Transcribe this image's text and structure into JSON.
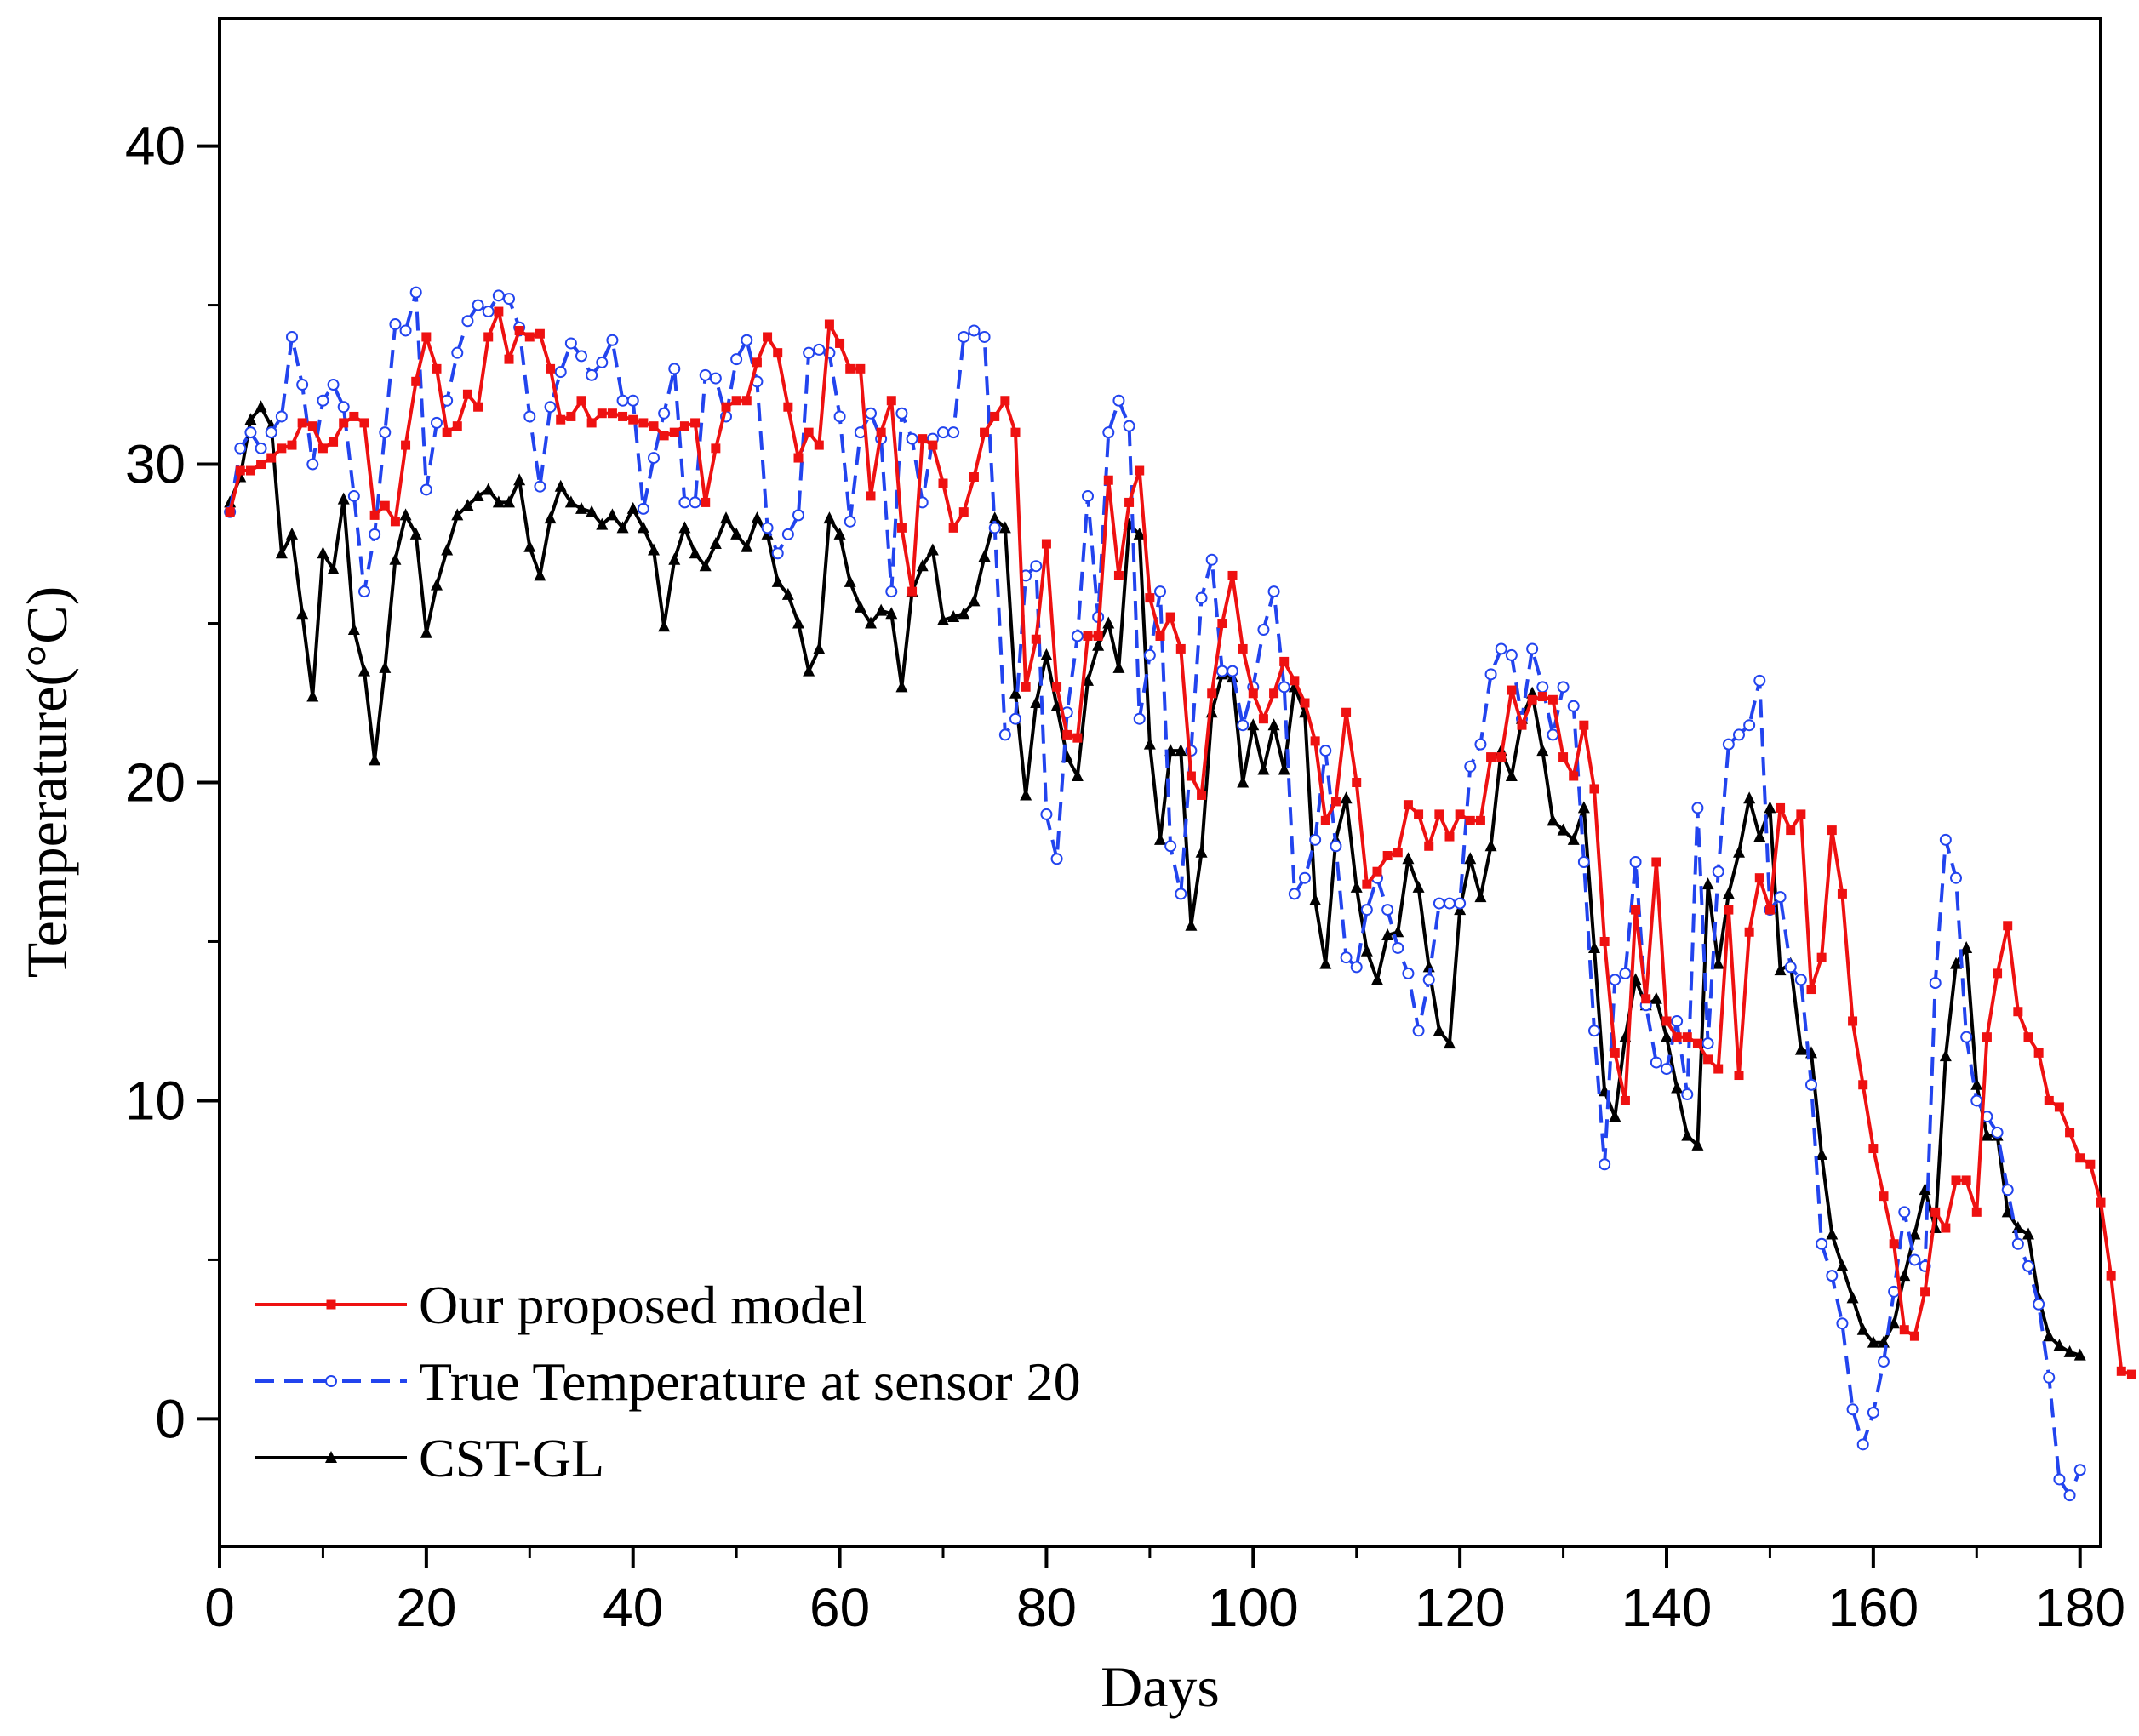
{
  "chart_data": {
    "type": "line",
    "title": "",
    "xlabel": "Days",
    "ylabel": "Temperature(°C)",
    "xlim": [
      0,
      182
    ],
    "ylim": [
      -4,
      44
    ],
    "xticks": [
      0,
      20,
      40,
      60,
      80,
      100,
      120,
      140,
      160,
      180
    ],
    "yticks": [
      0,
      10,
      20,
      30,
      40
    ],
    "legend_position": "bottom-left",
    "series": [
      {
        "name": "Our proposed model",
        "color": "#ee1111",
        "style": "solid",
        "marker": "square",
        "values": [
          28.5,
          29.8,
          29.8,
          30.0,
          30.2,
          30.5,
          30.6,
          31.3,
          31.2,
          30.5,
          30.7,
          31.3,
          31.5,
          31.3,
          28.4,
          28.7,
          28.2,
          30.6,
          32.6,
          34.0,
          33.0,
          31.0,
          31.2,
          32.2,
          31.8,
          34.0,
          34.8,
          33.3,
          34.2,
          34.0,
          34.1,
          33.0,
          31.4,
          31.5,
          32.0,
          31.3,
          31.6,
          31.6,
          31.5,
          31.4,
          31.3,
          31.2,
          30.9,
          31.0,
          31.2,
          31.3,
          28.8,
          30.5,
          31.8,
          32.0,
          32.0,
          33.2,
          34.0,
          33.5,
          31.8,
          30.2,
          31.0,
          30.6,
          34.4,
          33.8,
          33.0,
          33.0,
          29.0,
          31.0,
          32.0,
          28.0,
          26.0,
          30.8,
          30.6,
          29.4,
          28.0,
          28.5,
          29.6,
          31.0,
          31.5,
          32.0,
          31.0,
          23.0,
          24.5,
          27.5,
          23.0,
          21.5,
          21.4,
          24.6,
          24.6,
          29.5,
          26.5,
          28.8,
          29.8,
          25.8,
          24.6,
          25.2,
          24.2,
          20.2,
          19.6,
          22.8,
          25.0,
          26.5,
          24.2,
          22.8,
          22.0,
          22.8,
          23.8,
          23.2,
          22.5,
          21.3,
          18.8,
          19.4,
          22.2,
          20.0,
          16.8,
          17.2,
          17.7,
          17.8,
          19.3,
          19.0,
          18.0,
          19.0,
          18.3,
          19.0,
          18.8,
          18.8,
          20.8,
          20.8,
          22.9,
          21.8,
          22.6,
          22.7,
          22.6,
          20.8,
          20.2,
          21.8,
          19.8,
          15.0,
          11.5,
          10.0,
          16.0,
          13.2,
          17.5,
          12.5,
          12.0,
          12.0,
          11.8,
          11.3,
          11.0,
          16.0,
          10.8,
          15.3,
          17.0,
          16.0,
          19.2,
          18.5,
          19.0,
          13.5,
          14.5,
          18.5,
          16.5,
          12.5,
          10.5,
          8.5,
          7.0,
          5.5,
          2.8,
          2.6,
          4.0,
          6.5,
          6.0,
          7.5,
          7.5,
          6.5,
          12.0,
          14.0,
          15.5,
          12.8,
          12.0,
          11.5,
          10.0,
          9.8,
          9.0,
          8.2,
          8.0,
          6.8,
          4.5,
          1.5,
          1.4
        ]
      },
      {
        "name": "True Temperature at sensor 20",
        "color": "#2244ee",
        "style": "dashed",
        "marker": "circle",
        "values": [
          28.5,
          30.5,
          31.0,
          30.5,
          31.0,
          31.5,
          34.0,
          32.5,
          30.0,
          32.0,
          32.5,
          31.8,
          29.0,
          26.0,
          27.8,
          31.0,
          34.4,
          34.2,
          35.4,
          29.2,
          31.3,
          32.0,
          33.5,
          34.5,
          35.0,
          34.8,
          35.3,
          35.2,
          34.3,
          31.5,
          29.3,
          31.8,
          32.9,
          33.8,
          33.4,
          32.8,
          33.2,
          33.9,
          32.0,
          32.0,
          28.6,
          30.2,
          31.6,
          33.0,
          28.8,
          28.8,
          32.8,
          32.7,
          31.5,
          33.3,
          33.9,
          32.6,
          28.0,
          27.2,
          27.8,
          28.4,
          33.5,
          33.6,
          33.5,
          31.5,
          28.2,
          31.0,
          31.6,
          30.8,
          26.0,
          31.6,
          30.8,
          28.8,
          30.8,
          31.0,
          31.0,
          34.0,
          34.2,
          34.0,
          28.0,
          21.5,
          22.0,
          26.5,
          26.8,
          19.0,
          17.6,
          22.2,
          24.6,
          29.0,
          25.2,
          31.0,
          32.0,
          31.2,
          22.0,
          24.0,
          26.0,
          18.0,
          16.5,
          21.0,
          25.8,
          27.0,
          23.5,
          23.5,
          21.8,
          23.0,
          24.8,
          26.0,
          23.0,
          16.5,
          17.0,
          18.2,
          21.0,
          18.0,
          14.5,
          14.2,
          16.0,
          17.0,
          16.0,
          14.8,
          14.0,
          12.2,
          13.8,
          16.2,
          16.2,
          16.2,
          20.5,
          21.2,
          23.4,
          24.2,
          24.0,
          22.0,
          24.2,
          23.0,
          21.5,
          23.0,
          22.4,
          17.5,
          12.2,
          8.0,
          13.8,
          14.0,
          17.5,
          13.0,
          11.2,
          11.0,
          12.5,
          10.2,
          19.2,
          11.8,
          17.2,
          21.2,
          21.5,
          21.8,
          23.2,
          16.0,
          16.4,
          14.2,
          13.8,
          10.5,
          5.5,
          4.5,
          3.0,
          0.3,
          -0.8,
          0.2,
          1.8,
          4.0,
          6.5,
          5.0,
          4.8,
          13.7,
          18.2,
          17.0,
          12.0,
          10.0,
          9.5,
          9.0,
          7.2,
          5.5,
          4.8,
          3.6,
          1.3,
          -1.9,
          -2.4,
          -1.6
        ]
      },
      {
        "name": "CST-GL",
        "color": "#000000",
        "style": "solid",
        "marker": "triangle",
        "values": [
          28.8,
          29.6,
          31.4,
          31.8,
          31.2,
          27.2,
          27.8,
          25.3,
          22.7,
          27.2,
          26.7,
          28.9,
          24.8,
          23.5,
          20.7,
          23.6,
          27.0,
          28.4,
          27.8,
          24.7,
          26.2,
          27.3,
          28.4,
          28.7,
          29.0,
          29.2,
          28.8,
          28.8,
          29.5,
          27.4,
          26.5,
          28.3,
          29.3,
          28.8,
          28.6,
          28.5,
          28.1,
          28.4,
          28.0,
          28.6,
          28.0,
          27.3,
          24.9,
          27.0,
          28.0,
          27.2,
          26.8,
          27.5,
          28.3,
          27.8,
          27.4,
          28.3,
          27.8,
          26.3,
          25.9,
          25.0,
          23.5,
          24.2,
          28.3,
          27.8,
          26.3,
          25.5,
          25.0,
          25.4,
          25.3,
          23.0,
          26.0,
          26.8,
          27.3,
          25.1,
          25.2,
          25.3,
          25.7,
          27.1,
          28.3,
          28.0,
          22.8,
          19.6,
          22.5,
          24.0,
          22.4,
          20.8,
          20.2,
          23.2,
          24.3,
          25.0,
          23.6,
          28.1,
          27.8,
          21.2,
          18.2,
          21.0,
          21.0,
          15.5,
          17.8,
          22.2,
          23.4,
          23.3,
          20.0,
          21.8,
          20.4,
          21.8,
          20.4,
          23.0,
          22.2,
          16.3,
          14.3,
          18.2,
          19.5,
          16.7,
          14.7,
          13.8,
          15.2,
          15.3,
          17.6,
          16.7,
          14.2,
          12.2,
          11.8,
          16.0,
          17.6,
          16.4,
          18.0,
          21.0,
          20.2,
          22.0,
          22.8,
          21.0,
          18.8,
          18.5,
          18.2,
          19.2,
          14.8,
          10.3,
          9.5,
          12.0,
          13.8,
          13.0,
          13.2,
          12.0,
          10.4,
          8.9,
          8.6,
          16.8,
          14.3,
          16.5,
          17.8,
          19.5,
          18.3,
          19.2,
          14.1,
          14.3,
          11.6,
          11.5,
          8.3,
          5.8,
          4.8,
          3.8,
          2.8,
          2.4,
          2.4,
          3.0,
          4.5,
          5.8,
          7.2,
          6.0,
          11.4,
          14.3,
          14.8,
          10.5,
          8.9,
          8.9,
          6.5,
          6.0,
          5.8,
          3.8,
          2.6,
          2.3,
          2.1,
          2.0
        ]
      }
    ]
  }
}
